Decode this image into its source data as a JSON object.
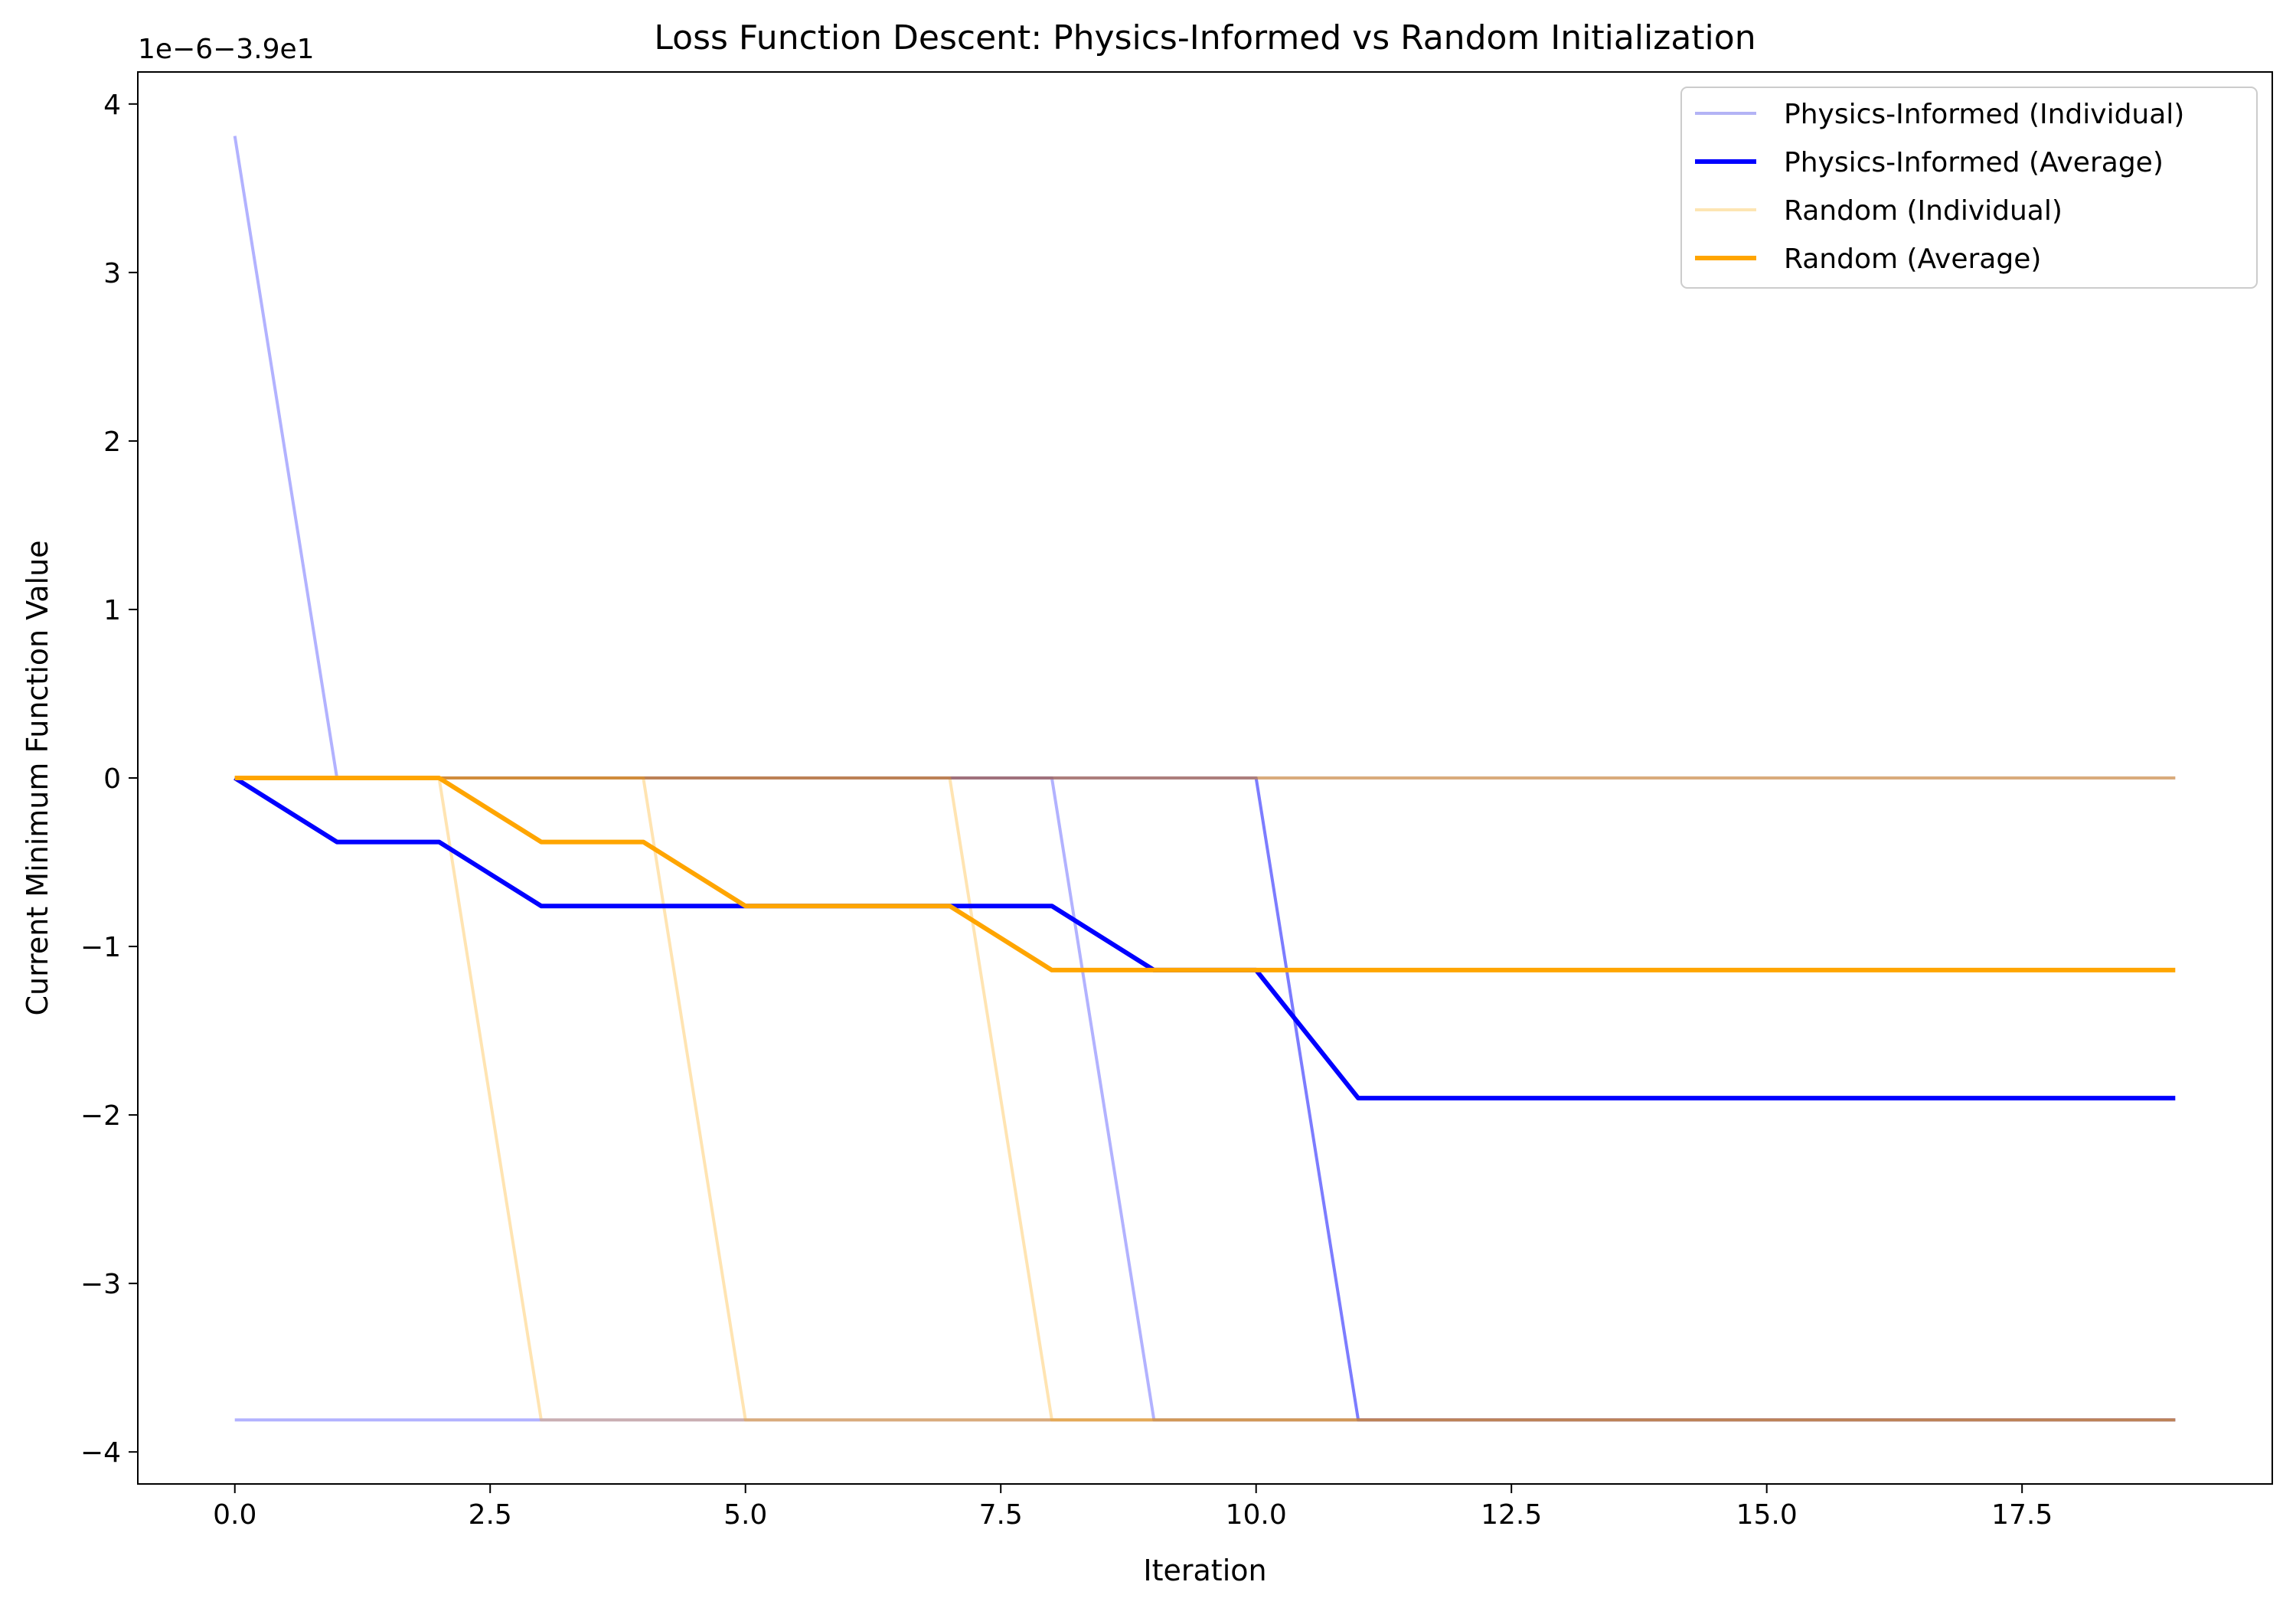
{
  "chart_data": {
    "type": "line",
    "title": "Loss Function Descent: Physics-Informed vs Random Initialization",
    "xlabel": "Iteration",
    "ylabel": "Current Minimum Function Value",
    "y_offset_text": "1e−6−3.9e1",
    "xlim": [
      -0.95,
      19.95
    ],
    "ylim": [
      -4.19,
      4.19
    ],
    "x_ticks": [
      0.0,
      2.5,
      5.0,
      7.5,
      10.0,
      12.5,
      15.0,
      17.5
    ],
    "x_tick_labels": [
      "0.0",
      "2.5",
      "5.0",
      "7.5",
      "10.0",
      "12.5",
      "15.0",
      "17.5"
    ],
    "y_ticks": [
      -4,
      -3,
      -2,
      -1,
      0,
      1,
      2,
      3,
      4
    ],
    "y_tick_labels": [
      "−4",
      "−3",
      "−2",
      "−1",
      "0",
      "1",
      "2",
      "3",
      "4"
    ],
    "grid": false,
    "legend_position": "top-right",
    "legend": [
      {
        "label": "Physics-Informed (Individual)",
        "color": "#b3b3f5",
        "width": 4
      },
      {
        "label": "Physics-Informed (Average)",
        "color": "#0000ff",
        "width": 6
      },
      {
        "label": "Random (Individual)",
        "color": "#fde5b3",
        "width": 4
      },
      {
        "label": "Random (Average)",
        "color": "#ffa500",
        "width": 6
      }
    ],
    "series": [
      {
        "group": "physics-individual",
        "color": "#0000ff",
        "opacity": 0.3,
        "width": 4,
        "x": [
          0,
          1,
          2,
          3,
          4,
          5,
          6,
          7,
          8,
          9,
          10,
          11,
          12,
          13,
          14,
          15,
          16,
          17,
          18,
          19
        ],
        "y": [
          3.81,
          0,
          0,
          0,
          0,
          0,
          0,
          0,
          0,
          0,
          0,
          0,
          0,
          0,
          0,
          0,
          0,
          0,
          0,
          0
        ]
      },
      {
        "group": "physics-individual",
        "color": "#0000ff",
        "opacity": 0.3,
        "width": 4,
        "x": [
          0,
          1,
          2,
          3,
          4,
          5,
          6,
          7,
          8,
          9,
          10,
          11,
          12,
          13,
          14,
          15,
          16,
          17,
          18,
          19
        ],
        "y": [
          -3.81,
          -3.81,
          -3.81,
          -3.81,
          -3.81,
          -3.81,
          -3.81,
          -3.81,
          -3.81,
          -3.81,
          -3.81,
          -3.81,
          -3.81,
          -3.81,
          -3.81,
          -3.81,
          -3.81,
          -3.81,
          -3.81,
          -3.81
        ]
      },
      {
        "group": "physics-individual",
        "color": "#0000ff",
        "opacity": 0.3,
        "width": 4,
        "x": [
          0,
          1,
          2,
          3,
          4,
          5,
          6,
          7,
          8,
          9,
          10,
          11,
          12,
          13,
          14,
          15,
          16,
          17,
          18,
          19
        ],
        "y": [
          0,
          0,
          0,
          0,
          0,
          0,
          0,
          0,
          0,
          -3.81,
          -3.81,
          -3.81,
          -3.81,
          -3.81,
          -3.81,
          -3.81,
          -3.81,
          -3.81,
          -3.81,
          -3.81
        ]
      },
      {
        "group": "physics-individual",
        "color": "#0000ff",
        "opacity": 0.3,
        "width": 4,
        "x": [
          0,
          1,
          2,
          3,
          4,
          5,
          6,
          7,
          8,
          9,
          10,
          11,
          12,
          13,
          14,
          15,
          16,
          17,
          18,
          19
        ],
        "y": [
          0,
          0,
          0,
          0,
          0,
          0,
          0,
          0,
          0,
          0,
          0,
          -3.81,
          -3.81,
          -3.81,
          -3.81,
          -3.81,
          -3.81,
          -3.81,
          -3.81,
          -3.81
        ]
      },
      {
        "group": "physics-individual",
        "color": "#0000ff",
        "opacity": 0.3,
        "width": 4,
        "x": [
          0,
          1,
          2,
          3,
          4,
          5,
          6,
          7,
          8,
          9,
          10,
          11,
          12,
          13,
          14,
          15,
          16,
          17,
          18,
          19
        ],
        "y": [
          0,
          0,
          0,
          0,
          0,
          0,
          0,
          0,
          0,
          0,
          0,
          -3.81,
          -3.81,
          -3.81,
          -3.81,
          -3.81,
          -3.81,
          -3.81,
          -3.81,
          -3.81
        ]
      },
      {
        "group": "random-individual",
        "color": "#ffa500",
        "opacity": 0.3,
        "width": 4,
        "x": [
          0,
          1,
          2,
          3,
          4,
          5,
          6,
          7,
          8,
          9,
          10,
          11,
          12,
          13,
          14,
          15,
          16,
          17,
          18,
          19
        ],
        "y": [
          0,
          0,
          0,
          -3.81,
          -3.81,
          -3.81,
          -3.81,
          -3.81,
          -3.81,
          -3.81,
          -3.81,
          -3.81,
          -3.81,
          -3.81,
          -3.81,
          -3.81,
          -3.81,
          -3.81,
          -3.81,
          -3.81
        ]
      },
      {
        "group": "random-individual",
        "color": "#ffa500",
        "opacity": 0.3,
        "width": 4,
        "x": [
          0,
          1,
          2,
          3,
          4,
          5,
          6,
          7,
          8,
          9,
          10,
          11,
          12,
          13,
          14,
          15,
          16,
          17,
          18,
          19
        ],
        "y": [
          0,
          0,
          0,
          0,
          0,
          -3.81,
          -3.81,
          -3.81,
          -3.81,
          -3.81,
          -3.81,
          -3.81,
          -3.81,
          -3.81,
          -3.81,
          -3.81,
          -3.81,
          -3.81,
          -3.81,
          -3.81
        ]
      },
      {
        "group": "random-individual",
        "color": "#ffa500",
        "opacity": 0.3,
        "width": 4,
        "x": [
          0,
          1,
          2,
          3,
          4,
          5,
          6,
          7,
          8,
          9,
          10,
          11,
          12,
          13,
          14,
          15,
          16,
          17,
          18,
          19
        ],
        "y": [
          0,
          0,
          0,
          0,
          0,
          0,
          0,
          0,
          -3.81,
          -3.81,
          -3.81,
          -3.81,
          -3.81,
          -3.81,
          -3.81,
          -3.81,
          -3.81,
          -3.81,
          -3.81,
          -3.81
        ]
      },
      {
        "group": "random-individual",
        "color": "#ffa500",
        "opacity": 0.3,
        "width": 4,
        "x": [
          0,
          1,
          2,
          3,
          4,
          5,
          6,
          7,
          8,
          9,
          10,
          11,
          12,
          13,
          14,
          15,
          16,
          17,
          18,
          19
        ],
        "y": [
          0,
          0,
          0,
          0,
          0,
          0,
          0,
          0,
          0,
          0,
          0,
          0,
          0,
          0,
          0,
          0,
          0,
          0,
          0,
          0
        ]
      },
      {
        "group": "random-individual",
        "color": "#ffa500",
        "opacity": 0.3,
        "width": 4,
        "x": [
          0,
          1,
          2,
          3,
          4,
          5,
          6,
          7,
          8,
          9,
          10,
          11,
          12,
          13,
          14,
          15,
          16,
          17,
          18,
          19
        ],
        "y": [
          0,
          0,
          0,
          0,
          0,
          0,
          0,
          0,
          0,
          0,
          0,
          0,
          0,
          0,
          0,
          0,
          0,
          0,
          0,
          0
        ]
      },
      {
        "group": "physics-average",
        "color": "#0000ff",
        "opacity": 1,
        "width": 6,
        "x": [
          0,
          1,
          2,
          3,
          4,
          5,
          6,
          7,
          8,
          9,
          10,
          11,
          12,
          13,
          14,
          15,
          16,
          17,
          18,
          19
        ],
        "y": [
          0,
          -0.38,
          -0.38,
          -0.76,
          -0.76,
          -0.76,
          -0.76,
          -0.76,
          -0.76,
          -1.14,
          -1.14,
          -1.9,
          -1.9,
          -1.9,
          -1.9,
          -1.9,
          -1.9,
          -1.9,
          -1.9,
          -1.9
        ]
      },
      {
        "group": "random-average",
        "color": "#ffa500",
        "opacity": 1,
        "width": 6,
        "x": [
          0,
          1,
          2,
          3,
          4,
          5,
          6,
          7,
          8,
          9,
          10,
          11,
          12,
          13,
          14,
          15,
          16,
          17,
          18,
          19
        ],
        "y": [
          0,
          0,
          0,
          -0.38,
          -0.38,
          -0.76,
          -0.76,
          -0.76,
          -1.14,
          -1.14,
          -1.14,
          -1.14,
          -1.14,
          -1.14,
          -1.14,
          -1.14,
          -1.14,
          -1.14,
          -1.14,
          -1.14
        ]
      }
    ]
  }
}
